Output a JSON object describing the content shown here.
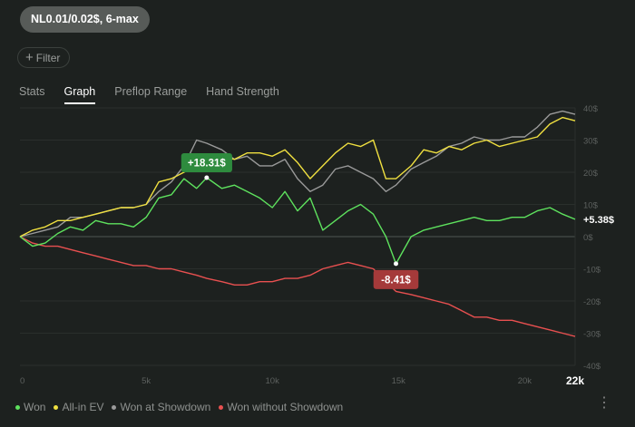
{
  "header": {
    "pill": "NL0.01/0.02$, 6-max",
    "filter": "Filter"
  },
  "tabs": [
    "Stats",
    "Graph",
    "Preflop Range",
    "Hand Strength"
  ],
  "active_tab": "Graph",
  "menu_icon": "more-vertical-icon",
  "chart_data": {
    "type": "line",
    "xlabel": "Hands",
    "ylabel": "$",
    "xlim": [
      0,
      22000
    ],
    "ylim": [
      -40,
      40
    ],
    "x_ticks": [
      {
        "v": 0,
        "l": "0"
      },
      {
        "v": 5000,
        "l": "5k"
      },
      {
        "v": 10000,
        "l": "10k"
      },
      {
        "v": 15000,
        "l": "15k"
      },
      {
        "v": 20000,
        "l": "20k"
      }
    ],
    "x_end_label": "22k",
    "y_ticks": [
      {
        "v": 40,
        "l": "40$"
      },
      {
        "v": 30,
        "l": "30$"
      },
      {
        "v": 20,
        "l": "20$"
      },
      {
        "v": 10,
        "l": "10$"
      },
      {
        "v": 0,
        "l": "0$"
      },
      {
        "v": -10,
        "l": "-10$"
      },
      {
        "v": -20,
        "l": "-20$"
      },
      {
        "v": -30,
        "l": "-30$"
      },
      {
        "v": -40,
        "l": "-40$"
      }
    ],
    "x": [
      0,
      500,
      1000,
      1500,
      2000,
      2500,
      3000,
      3500,
      4000,
      4500,
      5000,
      5500,
      6000,
      6500,
      7000,
      7400,
      8000,
      8500,
      9000,
      9500,
      10000,
      10500,
      11000,
      11500,
      12000,
      12500,
      13000,
      13500,
      14000,
      14500,
      14900,
      15500,
      16000,
      16500,
      17000,
      17500,
      18000,
      18500,
      19000,
      19500,
      20000,
      20500,
      21000,
      21500,
      22000
    ],
    "series": [
      {
        "name": "Won",
        "color": "#5ee25e",
        "values": [
          0,
          -3,
          -2,
          1,
          3,
          2,
          5,
          4,
          4,
          3,
          6,
          12,
          13,
          18,
          15,
          18.31,
          15,
          16,
          14,
          12,
          9,
          14,
          8,
          12,
          2,
          5,
          8,
          10,
          7,
          0,
          -8.41,
          0,
          2,
          3,
          4,
          5,
          6,
          5,
          5,
          6,
          6,
          8,
          9,
          7,
          5.38
        ]
      },
      {
        "name": "All-in EV",
        "color": "#f0e040",
        "values": [
          0,
          2,
          3,
          5,
          5,
          6,
          7,
          8,
          9,
          9,
          10,
          17,
          18,
          20,
          22,
          23,
          25,
          24,
          26,
          26,
          25,
          27,
          23,
          18,
          22,
          26,
          29,
          28,
          30,
          18,
          18,
          22,
          27,
          26,
          28,
          27,
          29,
          30,
          28,
          29,
          30,
          31,
          35,
          37,
          36
        ]
      },
      {
        "name": "Won at Showdown",
        "color": "#9a9a9a",
        "values": [
          0,
          1,
          2,
          3,
          6,
          6,
          7,
          8,
          9,
          9,
          10,
          14,
          17,
          22,
          30,
          29,
          27,
          24,
          25,
          22,
          22,
          24,
          18,
          14,
          16,
          21,
          22,
          20,
          18,
          14,
          16,
          21,
          23,
          25,
          28,
          29,
          31,
          30,
          30,
          31,
          31,
          34,
          38,
          39,
          38
        ]
      },
      {
        "name": "Won without Showdown",
        "color": "#e85050",
        "values": [
          0,
          -2,
          -3,
          -3,
          -4,
          -5,
          -6,
          -7,
          -8,
          -9,
          -9,
          -10,
          -10,
          -11,
          -12,
          -13,
          -14,
          -15,
          -15,
          -14,
          -14,
          -13,
          -13,
          -12,
          -10,
          -9,
          -8,
          -9,
          -10,
          -14,
          -17,
          -18,
          -19,
          -20,
          -21,
          -23,
          -25,
          -25,
          -26,
          -26,
          -27,
          -28,
          -29,
          -30,
          -31
        ]
      }
    ],
    "annotations": [
      {
        "series": "Won",
        "x": 7400,
        "y": 18.31,
        "label": "+18.31$",
        "color": "#2e8b3e",
        "position": "above"
      },
      {
        "series": "Won",
        "x": 14900,
        "y": -8.41,
        "label": "-8.41$",
        "color": "#a53a3a",
        "position": "below"
      }
    ],
    "end_label": "+5.38$",
    "legend": [
      "Won",
      "All-in EV",
      "Won at Showdown",
      "Won without Showdown"
    ],
    "legend_position": "bottom-left"
  }
}
